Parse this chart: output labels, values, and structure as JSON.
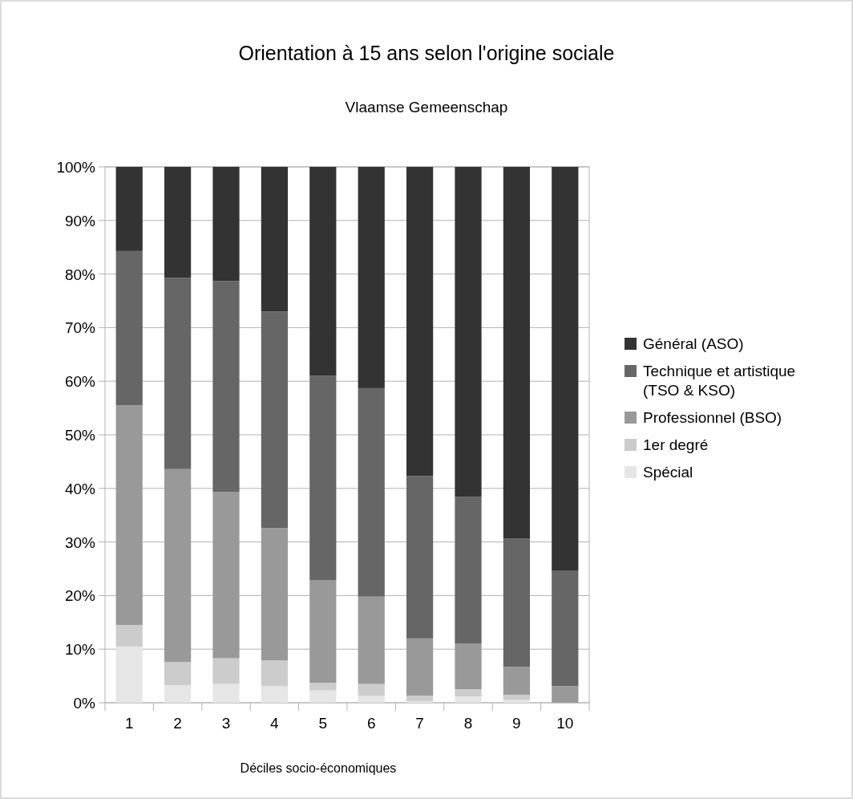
{
  "chart_data": {
    "type": "bar",
    "title": "Orientation à 15 ans selon l'origine sociale",
    "subtitle": "Vlaamse Gemeenschap",
    "xlabel": "Déciles socio-économiques",
    "categories": [
      "1",
      "2",
      "3",
      "4",
      "5",
      "6",
      "7",
      "8",
      "9",
      "10"
    ],
    "stacked": true,
    "ylim": [
      0,
      100
    ],
    "yticks": [
      {
        "value": 0,
        "label": "0%"
      },
      {
        "value": 10,
        "label": "10%"
      },
      {
        "value": 20,
        "label": "20%"
      },
      {
        "value": 30,
        "label": "30%"
      },
      {
        "value": 40,
        "label": "40%"
      },
      {
        "value": 50,
        "label": "50%"
      },
      {
        "value": 60,
        "label": "60%"
      },
      {
        "value": 70,
        "label": "70%"
      },
      {
        "value": 80,
        "label": "80%"
      },
      {
        "value": 90,
        "label": "90%"
      },
      {
        "value": 100,
        "label": "100%"
      }
    ],
    "grid": "y",
    "legend": "right",
    "series": [
      {
        "name": "Spécial",
        "color": "#e6e6e6",
        "values": [
          10.5,
          3.3,
          3.5,
          3.1,
          2.3,
          1.3,
          0.3,
          1.2,
          0.5,
          null
        ]
      },
      {
        "name": "1er degré",
        "color": "#cccccc",
        "values": [
          4.0,
          4.3,
          4.8,
          4.8,
          1.4,
          2.2,
          1.0,
          1.3,
          1.0,
          null
        ]
      },
      {
        "name": "Professionnel (BSO)",
        "color": "#999999",
        "values": [
          41.0,
          36.0,
          31.0,
          24.7,
          19.2,
          16.3,
          10.7,
          8.5,
          5.2,
          3.1
        ]
      },
      {
        "name": "Technique et artistique (TSO & KSO)",
        "color": "#666666",
        "values": [
          28.8,
          35.7,
          39.4,
          40.4,
          38.1,
          38.9,
          30.3,
          27.4,
          23.9,
          21.5
        ]
      },
      {
        "name": "Général (ASO)",
        "color": "#333333",
        "values": [
          15.7,
          20.7,
          21.3,
          27.0,
          39.0,
          41.3,
          57.7,
          61.6,
          69.4,
          75.4
        ]
      }
    ]
  }
}
